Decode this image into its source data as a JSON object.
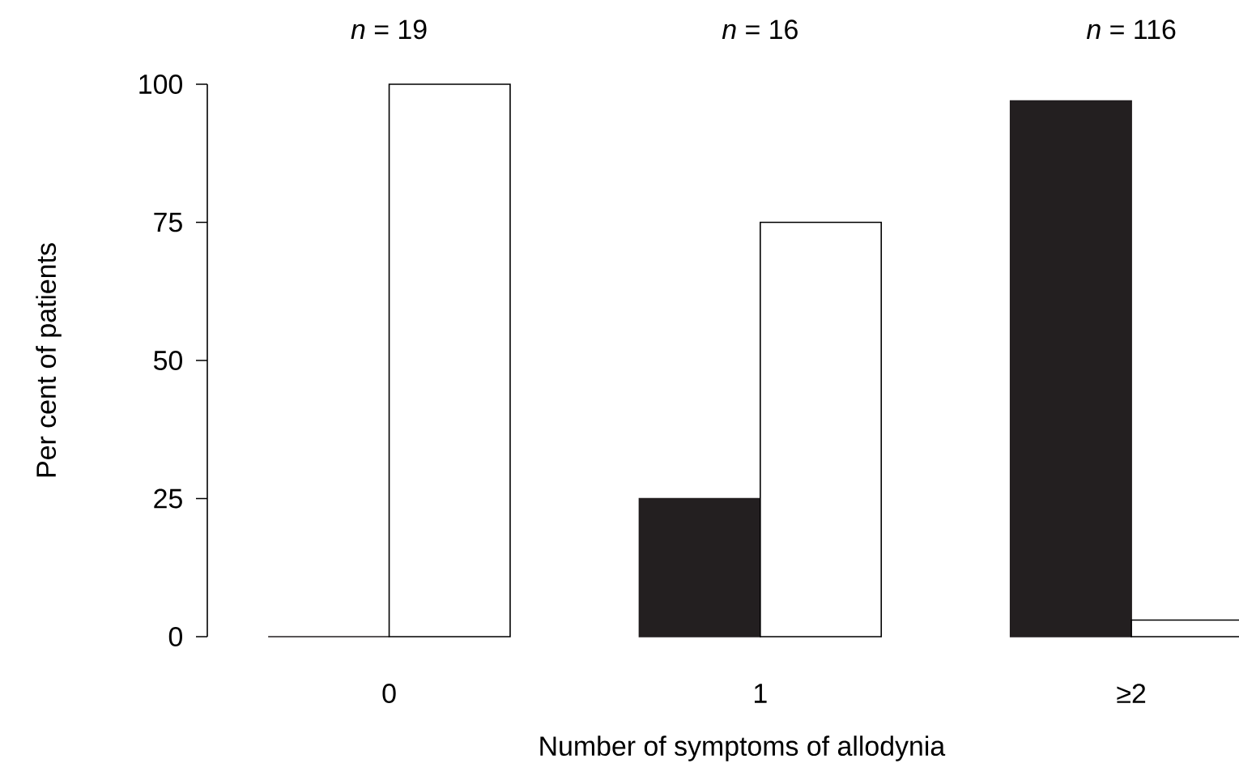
{
  "chart_data": {
    "type": "bar",
    "xlabel": "Number of symptoms of allodynia",
    "ylabel": "Per cent of patients",
    "categories": [
      "0",
      "1",
      "≥2"
    ],
    "series": [
      {
        "color": "#231f20",
        "values": [
          0,
          25,
          97
        ]
      },
      {
        "color": "#ffffff",
        "values": [
          100,
          75,
          3
        ]
      }
    ],
    "ylim": [
      0,
      100
    ],
    "yticks": [
      0,
      25,
      50,
      75,
      100
    ],
    "annotations": [
      "*n* = 19",
      "*n* = 16",
      "*n* = 116"
    ]
  }
}
